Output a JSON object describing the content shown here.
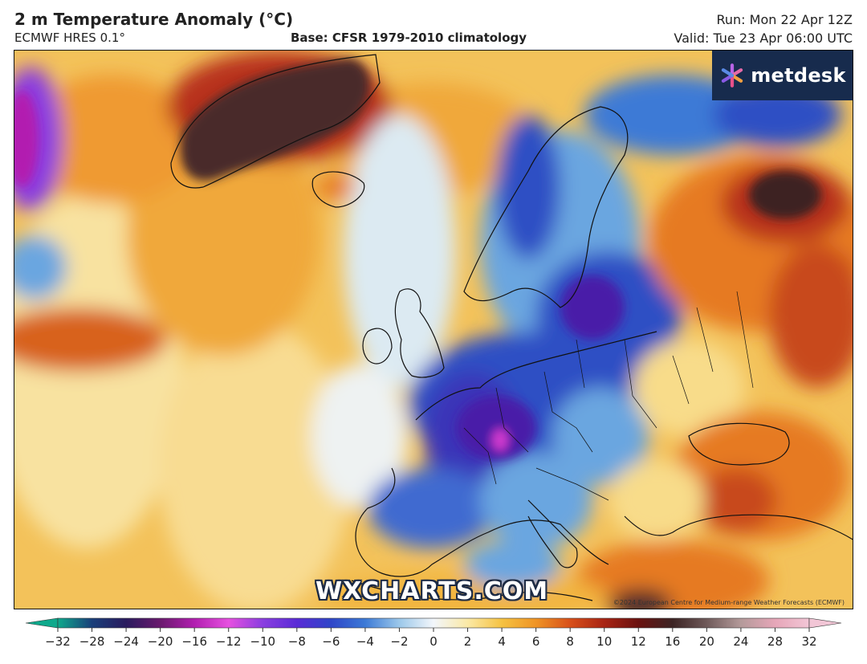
{
  "header": {
    "title": "2 m Temperature Anomaly (°C)",
    "model": "ECMWF HRES 0.1°",
    "base": "Base: CFSR 1979-2010 climatology",
    "run": "Run: Mon 22 Apr 12Z",
    "valid": "Valid: Tue 23 Apr 06:00 UTC"
  },
  "brand": {
    "name": "metdesk",
    "icon": "metdesk-flower-icon"
  },
  "watermark": "WXCHARTS.COM",
  "copyright": "©2024 European Centre for Medium-range Weather Forecasts (ECMWF)",
  "colorbar": {
    "ticks": [
      "−32",
      "−28",
      "−24",
      "−20",
      "−16",
      "−12",
      "−10",
      "−8",
      "−6",
      "−4",
      "−2",
      "0",
      "2",
      "4",
      "6",
      "8",
      "10",
      "12",
      "16",
      "20",
      "24",
      "28",
      "32"
    ],
    "colors": [
      "#0fa98c",
      "#1a3f7a",
      "#2a1b5e",
      "#6a1a6e",
      "#b21fb0",
      "#e650e0",
      "#8a3ee0",
      "#5a2bd6",
      "#2f46c8",
      "#3c7ad6",
      "#9cc8ea",
      "#f2f6fb",
      "#fbe9a6",
      "#f5c242",
      "#ef9425",
      "#d8501a",
      "#a82414",
      "#6a1210",
      "#3c2424",
      "#6f5a5a",
      "#b49a9a",
      "#e6a6b8",
      "#f2c6d6"
    ]
  },
  "map": {
    "region": "North Atlantic and Europe",
    "palette": {
      "strong_cold": "#4a1fa8",
      "cold": "#2d4fc4",
      "cool": "#6aa6e0",
      "slightly_cool": "#c6e0f2",
      "neutral": "#eef2f2",
      "slightly_warm": "#f8dc8a",
      "warm": "#f2b540",
      "hot": "#e67a22",
      "very_hot": "#b8331a",
      "extreme": "#4a2a2a"
    }
  }
}
